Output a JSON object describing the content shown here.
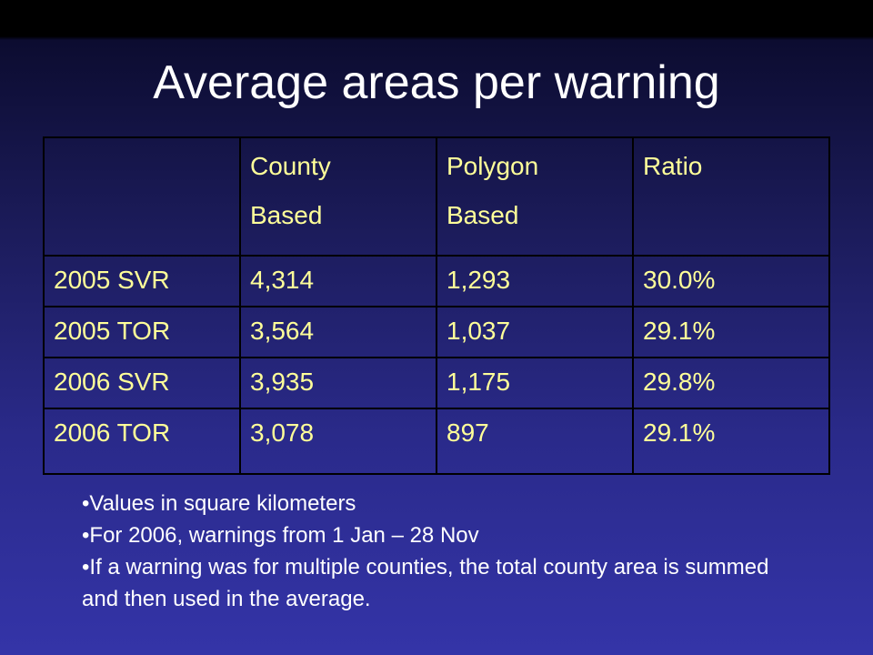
{
  "title": "Average areas per warning",
  "table": {
    "header": [
      [
        "County",
        "Based"
      ],
      [
        "Polygon",
        "Based"
      ],
      [
        "Ratio"
      ]
    ],
    "rows": [
      [
        "2005 SVR",
        "4,314",
        "1,293",
        "30.0%"
      ],
      [
        "2005 TOR",
        "3,564",
        "1,037",
        "29.1%"
      ],
      [
        "2006 SVR",
        "3,935",
        "1,175",
        "29.8%"
      ],
      [
        "2006 TOR",
        "3,078",
        "897",
        "29.1%"
      ]
    ]
  },
  "notes": [
    "Values in square kilometers",
    "For 2006, warnings from 1 Jan – 28 Nov",
    "If a warning was for multiple counties, the total county area is summed and then used in the average."
  ]
}
